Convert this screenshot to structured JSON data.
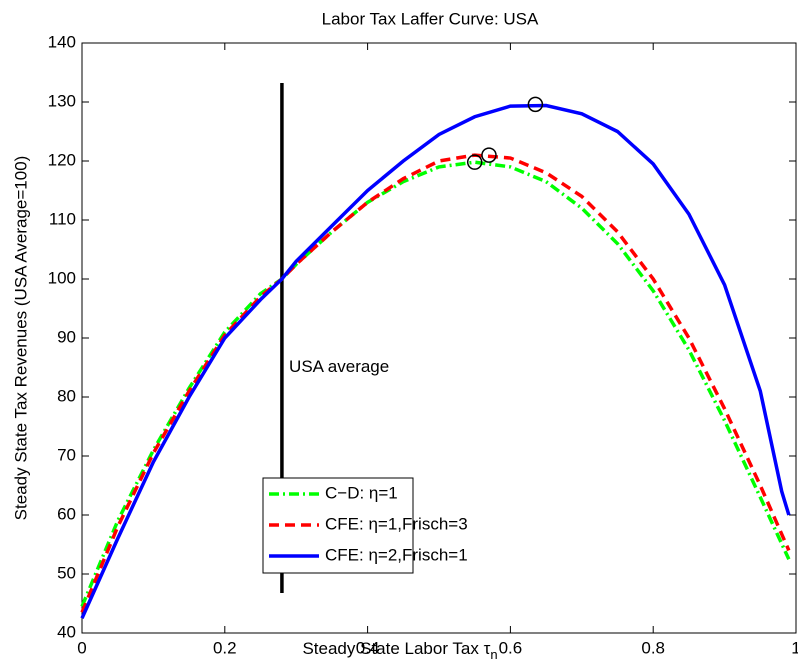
{
  "chart_data": {
    "type": "line",
    "title": "Labor Tax Laffer Curve: USA",
    "xlabel": "Steady State Labor Tax τ",
    "xlabel_subscript": "n",
    "ylabel": "Steady State Tax Revenues (USA   Average=100)",
    "xlim": [
      0,
      1
    ],
    "ylim": [
      40,
      140
    ],
    "xticks": [
      0,
      0.2,
      0.4,
      0.6,
      0.8,
      1
    ],
    "yticks": [
      40,
      50,
      60,
      70,
      80,
      90,
      100,
      110,
      120,
      130,
      140
    ],
    "grid": false,
    "legend_position": "lower center",
    "vline": {
      "x": 0.28,
      "color": "#000000"
    },
    "annotation": {
      "text": "USA   average",
      "x": 0.29,
      "y": 85
    },
    "series": [
      {
        "name": "C−D:  η=1",
        "color": "#00ff00",
        "dash": "dashdot",
        "x": [
          0,
          0.05,
          0.1,
          0.15,
          0.2,
          0.25,
          0.28,
          0.3,
          0.35,
          0.4,
          0.45,
          0.5,
          0.55,
          0.6,
          0.65,
          0.7,
          0.75,
          0.8,
          0.85,
          0.9,
          0.95,
          0.99
        ],
        "values": [
          44.5,
          59,
          71,
          81.5,
          91,
          97.5,
          100,
          102.5,
          108,
          113,
          116.5,
          119,
          119.8,
          119,
          116.5,
          112,
          106,
          98,
          88,
          76,
          63,
          52.5
        ],
        "peak": {
          "x": 0.55,
          "y": 119.8
        }
      },
      {
        "name": "CFE: η=1,Frisch=3",
        "color": "#ff0000",
        "dash": "dashed",
        "x": [
          0,
          0.05,
          0.1,
          0.15,
          0.2,
          0.25,
          0.28,
          0.3,
          0.35,
          0.4,
          0.45,
          0.5,
          0.55,
          0.6,
          0.65,
          0.7,
          0.75,
          0.8,
          0.85,
          0.9,
          0.95,
          0.99
        ],
        "values": [
          43.5,
          58,
          70.5,
          81,
          90.5,
          97,
          100,
          102.5,
          108,
          113,
          117,
          120,
          121,
          120.5,
          118,
          114,
          108,
          100,
          90,
          78,
          65,
          54
        ],
        "peak": {
          "x": 0.57,
          "y": 121
        }
      },
      {
        "name": "CFE: η=2,Frisch=1",
        "color": "#0000ff",
        "dash": "solid",
        "x": [
          0,
          0.05,
          0.1,
          0.15,
          0.2,
          0.25,
          0.28,
          0.3,
          0.35,
          0.4,
          0.45,
          0.5,
          0.55,
          0.6,
          0.65,
          0.7,
          0.75,
          0.8,
          0.85,
          0.9,
          0.95,
          0.98,
          0.99
        ],
        "values": [
          42.5,
          56,
          69,
          80,
          90,
          96.5,
          100,
          103,
          109,
          115,
          120,
          124.5,
          127.5,
          129.3,
          129.4,
          128,
          125,
          119.5,
          111,
          99,
          81,
          64,
          60
        ],
        "peak": {
          "x": 0.635,
          "y": 129.6
        }
      }
    ]
  }
}
